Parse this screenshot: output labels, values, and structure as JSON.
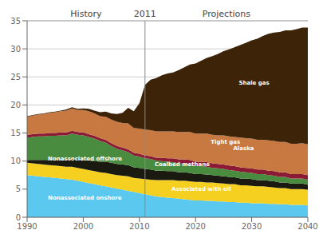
{
  "chart_data": {
    "type": "area",
    "stacked": true,
    "grid": true,
    "period_labels": {
      "history": "History",
      "vline": "2011",
      "projections": "Projections"
    },
    "vline": 2011,
    "xlim": [
      1990,
      2040
    ],
    "xticks": [
      1990,
      2000,
      2010,
      2020,
      2030,
      2040
    ],
    "ylim": [
      0,
      35
    ],
    "yticks": [
      0,
      5,
      10,
      15,
      20,
      25,
      30,
      35
    ],
    "x": [
      1990,
      1991,
      1992,
      1993,
      1994,
      1995,
      1996,
      1997,
      1998,
      1999,
      2000,
      2001,
      2002,
      2003,
      2004,
      2005,
      2006,
      2007,
      2008,
      2009,
      2010,
      2011,
      2012,
      2013,
      2014,
      2015,
      2016,
      2017,
      2018,
      2019,
      2020,
      2021,
      2022,
      2023,
      2024,
      2025,
      2026,
      2027,
      2028,
      2029,
      2030,
      2031,
      2032,
      2033,
      2034,
      2035,
      2036,
      2037,
      2038,
      2039,
      2040
    ],
    "series": [
      {
        "color": "#5bc8f0",
        "values": [
          7.5,
          7.4,
          7.3,
          7.2,
          7.1,
          7.0,
          6.9,
          6.8,
          6.7,
          6.5,
          6.3,
          6.1,
          5.9,
          5.7,
          5.5,
          5.3,
          5.1,
          4.9,
          4.7,
          4.5,
          4.3,
          4.1,
          3.9,
          3.7,
          3.6,
          3.5,
          3.4,
          3.3,
          3.2,
          3.1,
          3.0,
          3.0,
          2.9,
          2.9,
          2.8,
          2.8,
          2.7,
          2.7,
          2.6,
          2.6,
          2.5,
          2.5,
          2.5,
          2.4,
          2.4,
          2.3,
          2.3,
          2.2,
          2.2,
          2.2,
          2.1
        ]
      },
      {
        "color": "#f5d020",
        "values": [
          2.2,
          2.2,
          2.2,
          2.2,
          2.2,
          2.2,
          2.2,
          2.2,
          2.3,
          2.3,
          2.3,
          2.3,
          2.3,
          2.3,
          2.4,
          2.4,
          2.4,
          2.5,
          2.6,
          2.5,
          2.6,
          2.7,
          2.8,
          2.9,
          3.0,
          3.1,
          3.2,
          3.2,
          3.3,
          3.3,
          3.3,
          3.3,
          3.3,
          3.3,
          3.3,
          3.2,
          3.2,
          3.2,
          3.1,
          3.1,
          3.1,
          3.0,
          3.0,
          3.0,
          2.9,
          2.9,
          2.9,
          2.8,
          2.8,
          2.8,
          2.8
        ]
      },
      {
        "color": "#1a1a10",
        "values": [
          0.5,
          0.6,
          0.7,
          0.8,
          0.9,
          1.0,
          1.1,
          1.2,
          1.4,
          1.5,
          1.6,
          1.7,
          1.8,
          1.9,
          2.0,
          2.0,
          2.0,
          2.0,
          2.0,
          1.9,
          1.9,
          1.8,
          1.8,
          1.7,
          1.7,
          1.6,
          1.6,
          1.5,
          1.5,
          1.5,
          1.4,
          1.4,
          1.4,
          1.3,
          1.3,
          1.3,
          1.3,
          1.2,
          1.2,
          1.2,
          1.2,
          1.1,
          1.1,
          1.1,
          1.1,
          1.0,
          1.0,
          1.0,
          1.0,
          1.0,
          0.9
        ]
      },
      {
        "color": "#4a8c3f",
        "values": [
          4.0,
          4.1,
          4.2,
          4.2,
          4.3,
          4.3,
          4.4,
          4.4,
          4.5,
          4.4,
          4.4,
          4.2,
          4.0,
          3.7,
          3.4,
          3.0,
          2.7,
          2.5,
          2.3,
          2.1,
          2.0,
          1.9,
          1.9,
          1.8,
          1.7,
          1.7,
          1.6,
          1.6,
          1.5,
          1.5,
          1.4,
          1.4,
          1.4,
          1.3,
          1.3,
          1.3,
          1.2,
          1.2,
          1.2,
          1.1,
          1.1,
          1.1,
          1.1,
          1.0,
          1.0,
          1.0,
          1.0,
          0.9,
          0.9,
          0.9,
          0.9
        ]
      },
      {
        "color": "#8b1a35",
        "values": [
          0.5,
          0.5,
          0.5,
          0.5,
          0.5,
          0.5,
          0.5,
          0.5,
          0.5,
          0.5,
          0.5,
          0.5,
          0.5,
          0.5,
          0.5,
          0.5,
          0.5,
          0.5,
          0.5,
          0.5,
          0.5,
          0.5,
          0.5,
          0.5,
          0.6,
          0.6,
          0.7,
          0.7,
          0.8,
          0.8,
          0.8,
          0.8,
          0.8,
          0.8,
          0.8,
          0.8,
          0.8,
          0.8,
          0.8,
          0.8,
          0.8,
          0.8,
          0.8,
          0.8,
          0.8,
          0.8,
          0.8,
          0.8,
          0.8,
          0.8,
          0.8
        ]
      },
      {
        "color": "#c87941",
        "values": [
          3.2,
          3.3,
          3.4,
          3.5,
          3.6,
          3.7,
          3.8,
          3.9,
          4.0,
          3.9,
          4.0,
          4.1,
          4.0,
          3.9,
          4.1,
          4.2,
          4.3,
          4.4,
          4.6,
          4.4,
          4.5,
          4.6,
          4.6,
          4.7,
          4.7,
          4.8,
          4.8,
          4.9,
          4.9,
          5.0,
          5.0,
          5.0,
          5.1,
          5.1,
          5.1,
          5.2,
          5.2,
          5.2,
          5.3,
          5.3,
          5.3,
          5.3,
          5.3,
          5.4,
          5.4,
          5.4,
          5.4,
          5.4,
          5.4,
          5.5,
          5.5
        ]
      },
      {
        "color": "#3d2408",
        "values": [
          0.1,
          0.1,
          0.1,
          0.1,
          0.1,
          0.1,
          0.1,
          0.2,
          0.2,
          0.2,
          0.3,
          0.4,
          0.5,
          0.7,
          0.9,
          1.1,
          1.4,
          1.8,
          2.8,
          3.0,
          4.5,
          8.0,
          9.0,
          9.5,
          10.0,
          10.3,
          10.5,
          11.0,
          11.5,
          12.0,
          12.5,
          13.0,
          13.5,
          14.0,
          14.5,
          15.0,
          15.5,
          16.0,
          16.5,
          17.0,
          17.5,
          18.0,
          18.5,
          19.0,
          19.3,
          19.6,
          19.9,
          20.2,
          20.4,
          20.6,
          20.8
        ]
      }
    ],
    "annotations": [
      {
        "text": "Nonassociated onshore",
        "x": 1993,
        "y": 3.5,
        "color": "white"
      },
      {
        "text": "Nonassociated offshore",
        "x": 1993,
        "y": 10.5,
        "color": "white"
      },
      {
        "text": "Coalbed methane",
        "x": 2012,
        "y": 9.4,
        "color": "white"
      },
      {
        "text": "Associated with oil",
        "x": 2015,
        "y": 5.0,
        "color": "white"
      },
      {
        "text": "Tight gas",
        "x": 2022,
        "y": 13.5,
        "color": "white"
      },
      {
        "text": "Alaska",
        "x": 2026,
        "y": 12.3,
        "color": "white"
      },
      {
        "text": "Shale gas",
        "x": 2027,
        "y": 24.0,
        "color": "white"
      }
    ]
  }
}
